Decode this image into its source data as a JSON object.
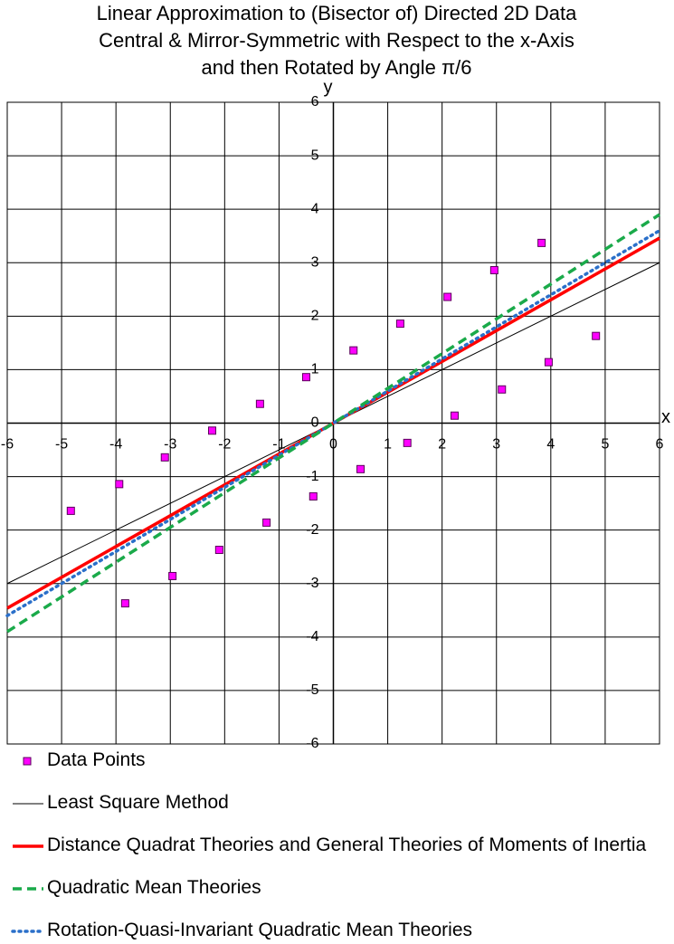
{
  "chart_data": {
    "type": "scatter",
    "title": [
      "Linear Approximation to (Bisector of) Directed 2D Data",
      "Central & Mirror-Symmetric with Respect to the x-Axis",
      "and then Rotated by Angle π/6"
    ],
    "x_label": "x",
    "y_label": "y",
    "xlim": [
      -6,
      6
    ],
    "ylim": [
      -6,
      6
    ],
    "xticks": [
      -6,
      -5,
      -4,
      -3,
      -2,
      -1,
      0,
      1,
      2,
      3,
      4,
      5,
      6
    ],
    "yticks": [
      -6,
      -5,
      -4,
      -3,
      -2,
      -1,
      0,
      1,
      2,
      3,
      4,
      5,
      6
    ],
    "grid": true,
    "legend": "bottom",
    "series": [
      {
        "name": "Data Points",
        "mode": "markers",
        "color": "#ff00ff",
        "x": [
          -4.83,
          -3.94,
          -3.83,
          -3.1,
          -2.96,
          -2.23,
          -2.1,
          -1.35,
          -1.23,
          -0.5,
          -0.37,
          0.37,
          0.5,
          1.23,
          1.36,
          2.1,
          2.23,
          2.96,
          3.1,
          3.83,
          3.96,
          4.83
        ],
        "values": [
          -1.64,
          -1.14,
          -3.37,
          -0.64,
          -2.86,
          -0.14,
          -2.37,
          0.36,
          -1.86,
          0.86,
          -1.37,
          1.36,
          -0.86,
          1.86,
          -0.37,
          2.36,
          0.14,
          2.86,
          0.63,
          3.37,
          1.14,
          1.63
        ]
      },
      {
        "name": "Least Square Method",
        "mode": "solid",
        "color": "#000000",
        "x": [
          -6,
          6
        ],
        "values": [
          -3.0,
          3.0
        ]
      },
      {
        "name": "Distance Quadrat Theories and General Theories of Moments of Inertia",
        "mode": "thick",
        "color": "#ff0000",
        "x": [
          -6,
          6
        ],
        "values": [
          -3.46,
          3.46
        ]
      },
      {
        "name": "Quadratic Mean Theories",
        "mode": "dashed",
        "color": "#1aaa4a",
        "x": [
          -6,
          6
        ],
        "values": [
          -3.9,
          3.9
        ]
      },
      {
        "name": "Rotation-Quasi-Invariant Quadratic Mean Theories",
        "mode": "dotted",
        "color": "#2a6fc9",
        "x": [
          -6,
          6
        ],
        "values": [
          -3.6,
          3.6
        ]
      }
    ]
  }
}
